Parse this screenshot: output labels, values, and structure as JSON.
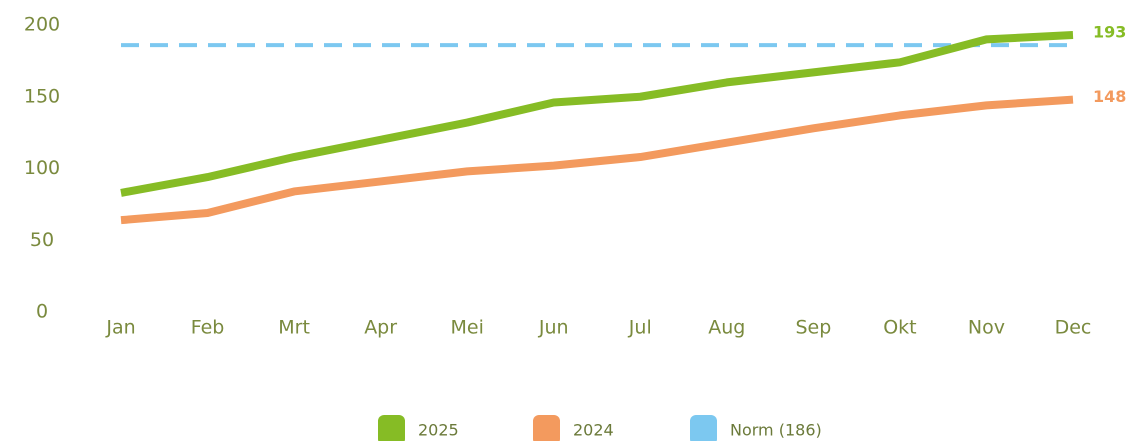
{
  "chart_data": {
    "type": "line",
    "categories": [
      "Jan",
      "Feb",
      "Mrt",
      "Apr",
      "Mei",
      "Jun",
      "Jul",
      "Aug",
      "Sep",
      "Okt",
      "Nov",
      "Dec"
    ],
    "series": [
      {
        "name": "2025",
        "color": "#86bc25",
        "values": [
          83,
          94,
          108,
          120,
          132,
          146,
          150,
          160,
          167,
          174,
          190,
          193
        ]
      },
      {
        "name": "2024",
        "color": "#f39a5e",
        "values": [
          64,
          69,
          84,
          91,
          98,
          102,
          108,
          118,
          128,
          137,
          144,
          148
        ]
      }
    ],
    "norm": {
      "name": "Norm (186)",
      "value": 186,
      "color": "#7cc8f0"
    },
    "ylim": [
      0,
      200
    ],
    "yticks": [
      0,
      50,
      100,
      150,
      200
    ],
    "grid": false
  }
}
